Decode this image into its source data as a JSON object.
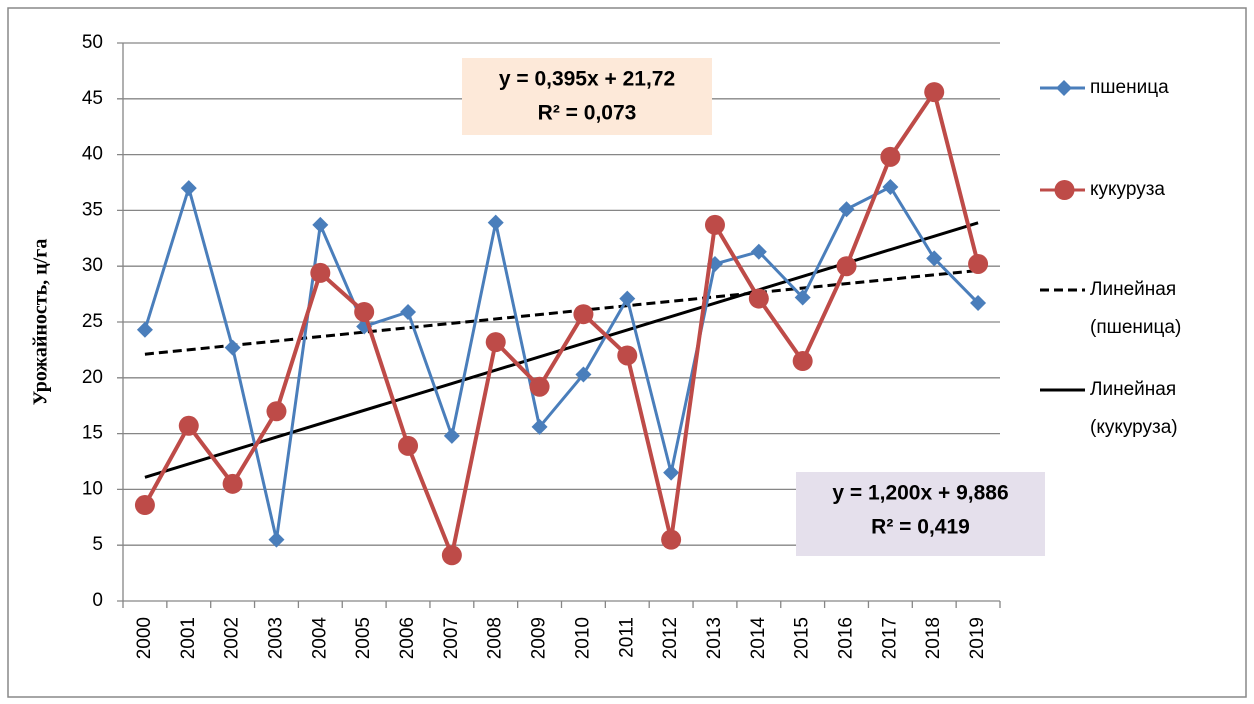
{
  "chart_data": {
    "type": "line",
    "y_label": "Урожайность, ц/га",
    "categories": [
      "2000",
      "2001",
      "2002",
      "2003",
      "2004",
      "2005",
      "2006",
      "2007",
      "2008",
      "2009",
      "2010",
      "2011",
      "2012",
      "2013",
      "2014",
      "2015",
      "2016",
      "2017",
      "2018",
      "2019"
    ],
    "series": [
      {
        "name": "пшеница",
        "color": "#4a7ebb",
        "marker": "diamond",
        "values": [
          24.3,
          37.0,
          22.7,
          5.5,
          33.7,
          24.6,
          25.9,
          14.8,
          33.9,
          15.6,
          20.3,
          27.1,
          11.5,
          30.2,
          31.3,
          27.2,
          35.1,
          37.1,
          30.7,
          26.7
        ]
      },
      {
        "name": "кукуруза",
        "color": "#be4b48",
        "marker": "circle",
        "values": [
          8.6,
          15.7,
          10.5,
          17.0,
          29.4,
          25.9,
          13.9,
          4.1,
          23.2,
          19.2,
          25.7,
          22.0,
          5.5,
          33.7,
          27.1,
          21.5,
          30.0,
          39.8,
          45.6,
          30.2
        ]
      }
    ],
    "trendlines": [
      {
        "name": "Линейная (пшеница)",
        "color": "#000000",
        "dashed": true,
        "slope": 0.395,
        "intercept": 21.72
      },
      {
        "name": "Линейная (кукуруза)",
        "color": "#000000",
        "dashed": false,
        "slope": 1.2,
        "intercept": 9.886
      }
    ],
    "annotations": [
      {
        "lines": [
          "y = 0,395x + 21,72",
          "R² = 0,073"
        ],
        "color": "#fde9d9"
      },
      {
        "lines": [
          "y = 1,200x + 9,886",
          "R² = 0,419"
        ],
        "color": "#e5e0ec"
      }
    ],
    "ylim": [
      0,
      50
    ],
    "yticks": [
      0,
      5,
      10,
      15,
      20,
      25,
      30,
      35,
      40,
      45,
      50
    ],
    "grid": true
  }
}
